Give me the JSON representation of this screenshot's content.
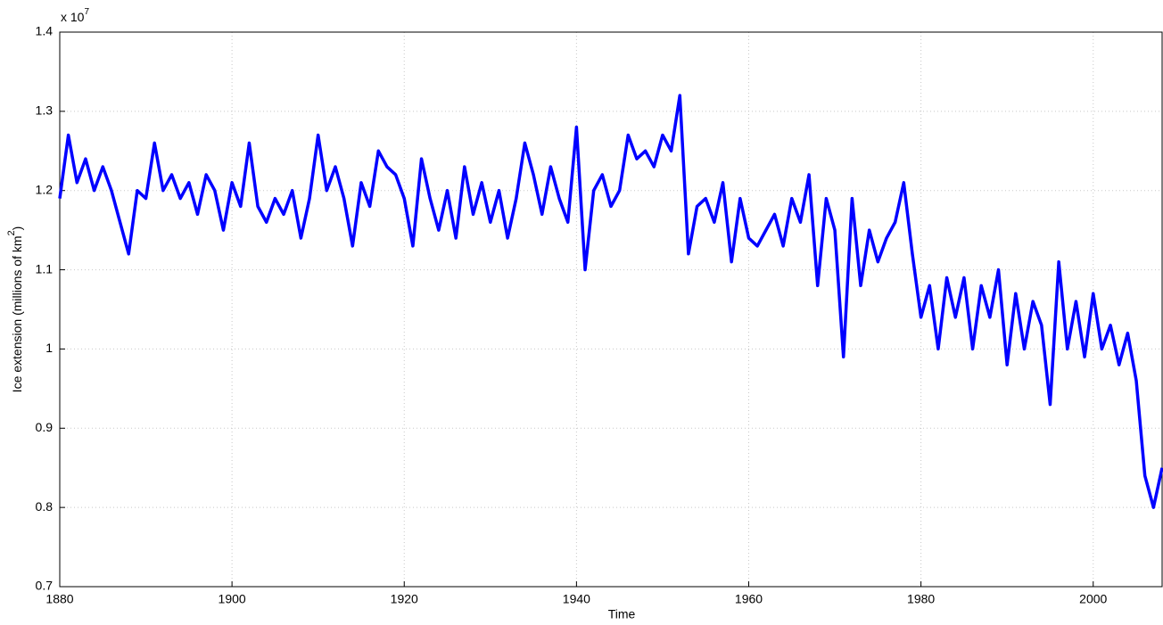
{
  "chart_data": {
    "type": "line",
    "xlabel": "Time",
    "ylabel": "Ice extension (millions of km",
    "ylabel_power": "2",
    "ylabel_end": ")",
    "y_exponent_base": "x 10",
    "y_exponent_power": "7",
    "xlim": [
      1880,
      2008
    ],
    "xticks": [
      1880,
      1900,
      1920,
      1940,
      1960,
      1980,
      2000
    ],
    "ylim": [
      0.7,
      1.4
    ],
    "yticks": [
      0.7,
      0.8,
      0.9,
      1,
      1.1,
      1.2,
      1.3,
      1.4
    ],
    "grid": true,
    "series": [
      {
        "color": "#0000ff",
        "x": [
          1880,
          1881,
          1882,
          1883,
          1884,
          1885,
          1886,
          1887,
          1888,
          1889,
          1890,
          1891,
          1892,
          1893,
          1894,
          1895,
          1896,
          1897,
          1898,
          1899,
          1900,
          1901,
          1902,
          1903,
          1904,
          1905,
          1906,
          1907,
          1908,
          1909,
          1910,
          1911,
          1912,
          1913,
          1914,
          1915,
          1916,
          1917,
          1918,
          1919,
          1920,
          1921,
          1922,
          1923,
          1924,
          1925,
          1926,
          1927,
          1928,
          1929,
          1930,
          1931,
          1932,
          1933,
          1934,
          1935,
          1936,
          1937,
          1938,
          1939,
          1940,
          1941,
          1942,
          1943,
          1944,
          1945,
          1946,
          1947,
          1948,
          1949,
          1950,
          1951,
          1952,
          1953,
          1954,
          1955,
          1956,
          1957,
          1958,
          1959,
          1960,
          1961,
          1962,
          1963,
          1964,
          1965,
          1966,
          1967,
          1968,
          1969,
          1970,
          1971,
          1972,
          1973,
          1974,
          1975,
          1976,
          1977,
          1978,
          1979,
          1980,
          1981,
          1982,
          1983,
          1984,
          1985,
          1986,
          1987,
          1988,
          1989,
          1990,
          1991,
          1992,
          1993,
          1994,
          1995,
          1996,
          1997,
          1998,
          1999,
          2000,
          2001,
          2002,
          2003,
          2004,
          2005,
          2006,
          2007,
          2008
        ],
        "values": [
          1.19,
          1.27,
          1.21,
          1.24,
          1.2,
          1.23,
          1.2,
          1.16,
          1.12,
          1.2,
          1.19,
          1.26,
          1.2,
          1.22,
          1.19,
          1.21,
          1.17,
          1.22,
          1.2,
          1.15,
          1.21,
          1.18,
          1.26,
          1.18,
          1.16,
          1.19,
          1.17,
          1.2,
          1.14,
          1.19,
          1.27,
          1.2,
          1.23,
          1.19,
          1.13,
          1.21,
          1.18,
          1.25,
          1.23,
          1.22,
          1.19,
          1.13,
          1.24,
          1.19,
          1.15,
          1.2,
          1.14,
          1.23,
          1.17,
          1.21,
          1.16,
          1.2,
          1.14,
          1.19,
          1.26,
          1.22,
          1.17,
          1.23,
          1.19,
          1.16,
          1.28,
          1.1,
          1.2,
          1.22,
          1.18,
          1.2,
          1.27,
          1.24,
          1.25,
          1.23,
          1.27,
          1.25,
          1.32,
          1.12,
          1.18,
          1.19,
          1.16,
          1.21,
          1.11,
          1.19,
          1.14,
          1.13,
          1.15,
          1.17,
          1.13,
          1.19,
          1.16,
          1.22,
          1.08,
          1.19,
          1.15,
          0.99,
          1.19,
          1.08,
          1.15,
          1.11,
          1.14,
          1.16,
          1.21,
          1.12,
          1.04,
          1.08,
          1.0,
          1.09,
          1.04,
          1.09,
          1.0,
          1.08,
          1.04,
          1.1,
          0.98,
          1.07,
          1.0,
          1.06,
          1.03,
          0.93,
          1.11,
          1.0,
          1.06,
          0.99,
          1.07,
          1.0,
          1.03,
          0.98,
          1.02,
          0.96,
          0.84,
          0.8,
          0.85
        ]
      }
    ]
  }
}
